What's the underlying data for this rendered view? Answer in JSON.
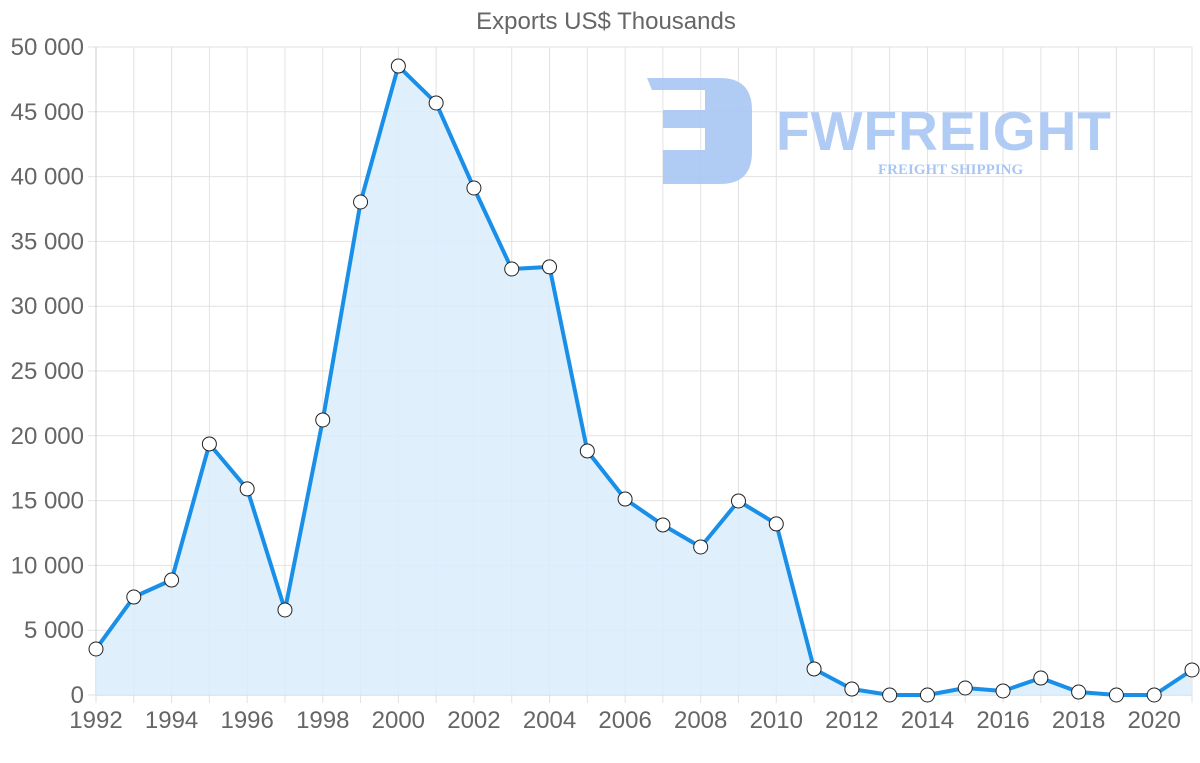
{
  "chart_data": {
    "type": "area",
    "title": "Exports US$ Thousands",
    "xlabel": "",
    "ylabel": "",
    "x": [
      1992,
      1993,
      1994,
      1995,
      1996,
      1997,
      1998,
      1999,
      2000,
      2001,
      2002,
      2003,
      2004,
      2005,
      2006,
      2007,
      2008,
      2009,
      2010,
      2011,
      2012,
      2013,
      2014,
      2015,
      2016,
      2017,
      2018,
      2019,
      2020,
      2021
    ],
    "series": [
      {
        "name": "Exports US$ Thousands",
        "values": [
          3550,
          7560,
          8870,
          19370,
          15900,
          6560,
          21220,
          38040,
          48530,
          45680,
          39120,
          32870,
          33030,
          18830,
          15120,
          13120,
          11420,
          14970,
          13200,
          2010,
          460,
          0,
          0,
          540,
          310,
          1310,
          230,
          0,
          0,
          1930
        ]
      }
    ],
    "ylim": [
      0,
      50000
    ],
    "y_ticks": [
      "0",
      "5 000",
      "10 000",
      "15 000",
      "20 000",
      "25 000",
      "30 000",
      "35 000",
      "40 000",
      "45 000",
      "50 000"
    ],
    "x_ticks": [
      "1992",
      "1994",
      "1996",
      "1998",
      "2000",
      "2002",
      "2004",
      "2006",
      "2008",
      "2010",
      "2012",
      "2014",
      "2016",
      "2018",
      "2020"
    ],
    "grid": true,
    "legend": "none",
    "colors": {
      "line": "#1a8fe8",
      "fill": "#d9ecfc",
      "grid": "#e2e2e2",
      "text": "#666666"
    }
  },
  "watermark": {
    "brand": "FWFREIGHT",
    "tagline": "FREIGHT SHIPPING",
    "color": "#a9c6f3"
  }
}
